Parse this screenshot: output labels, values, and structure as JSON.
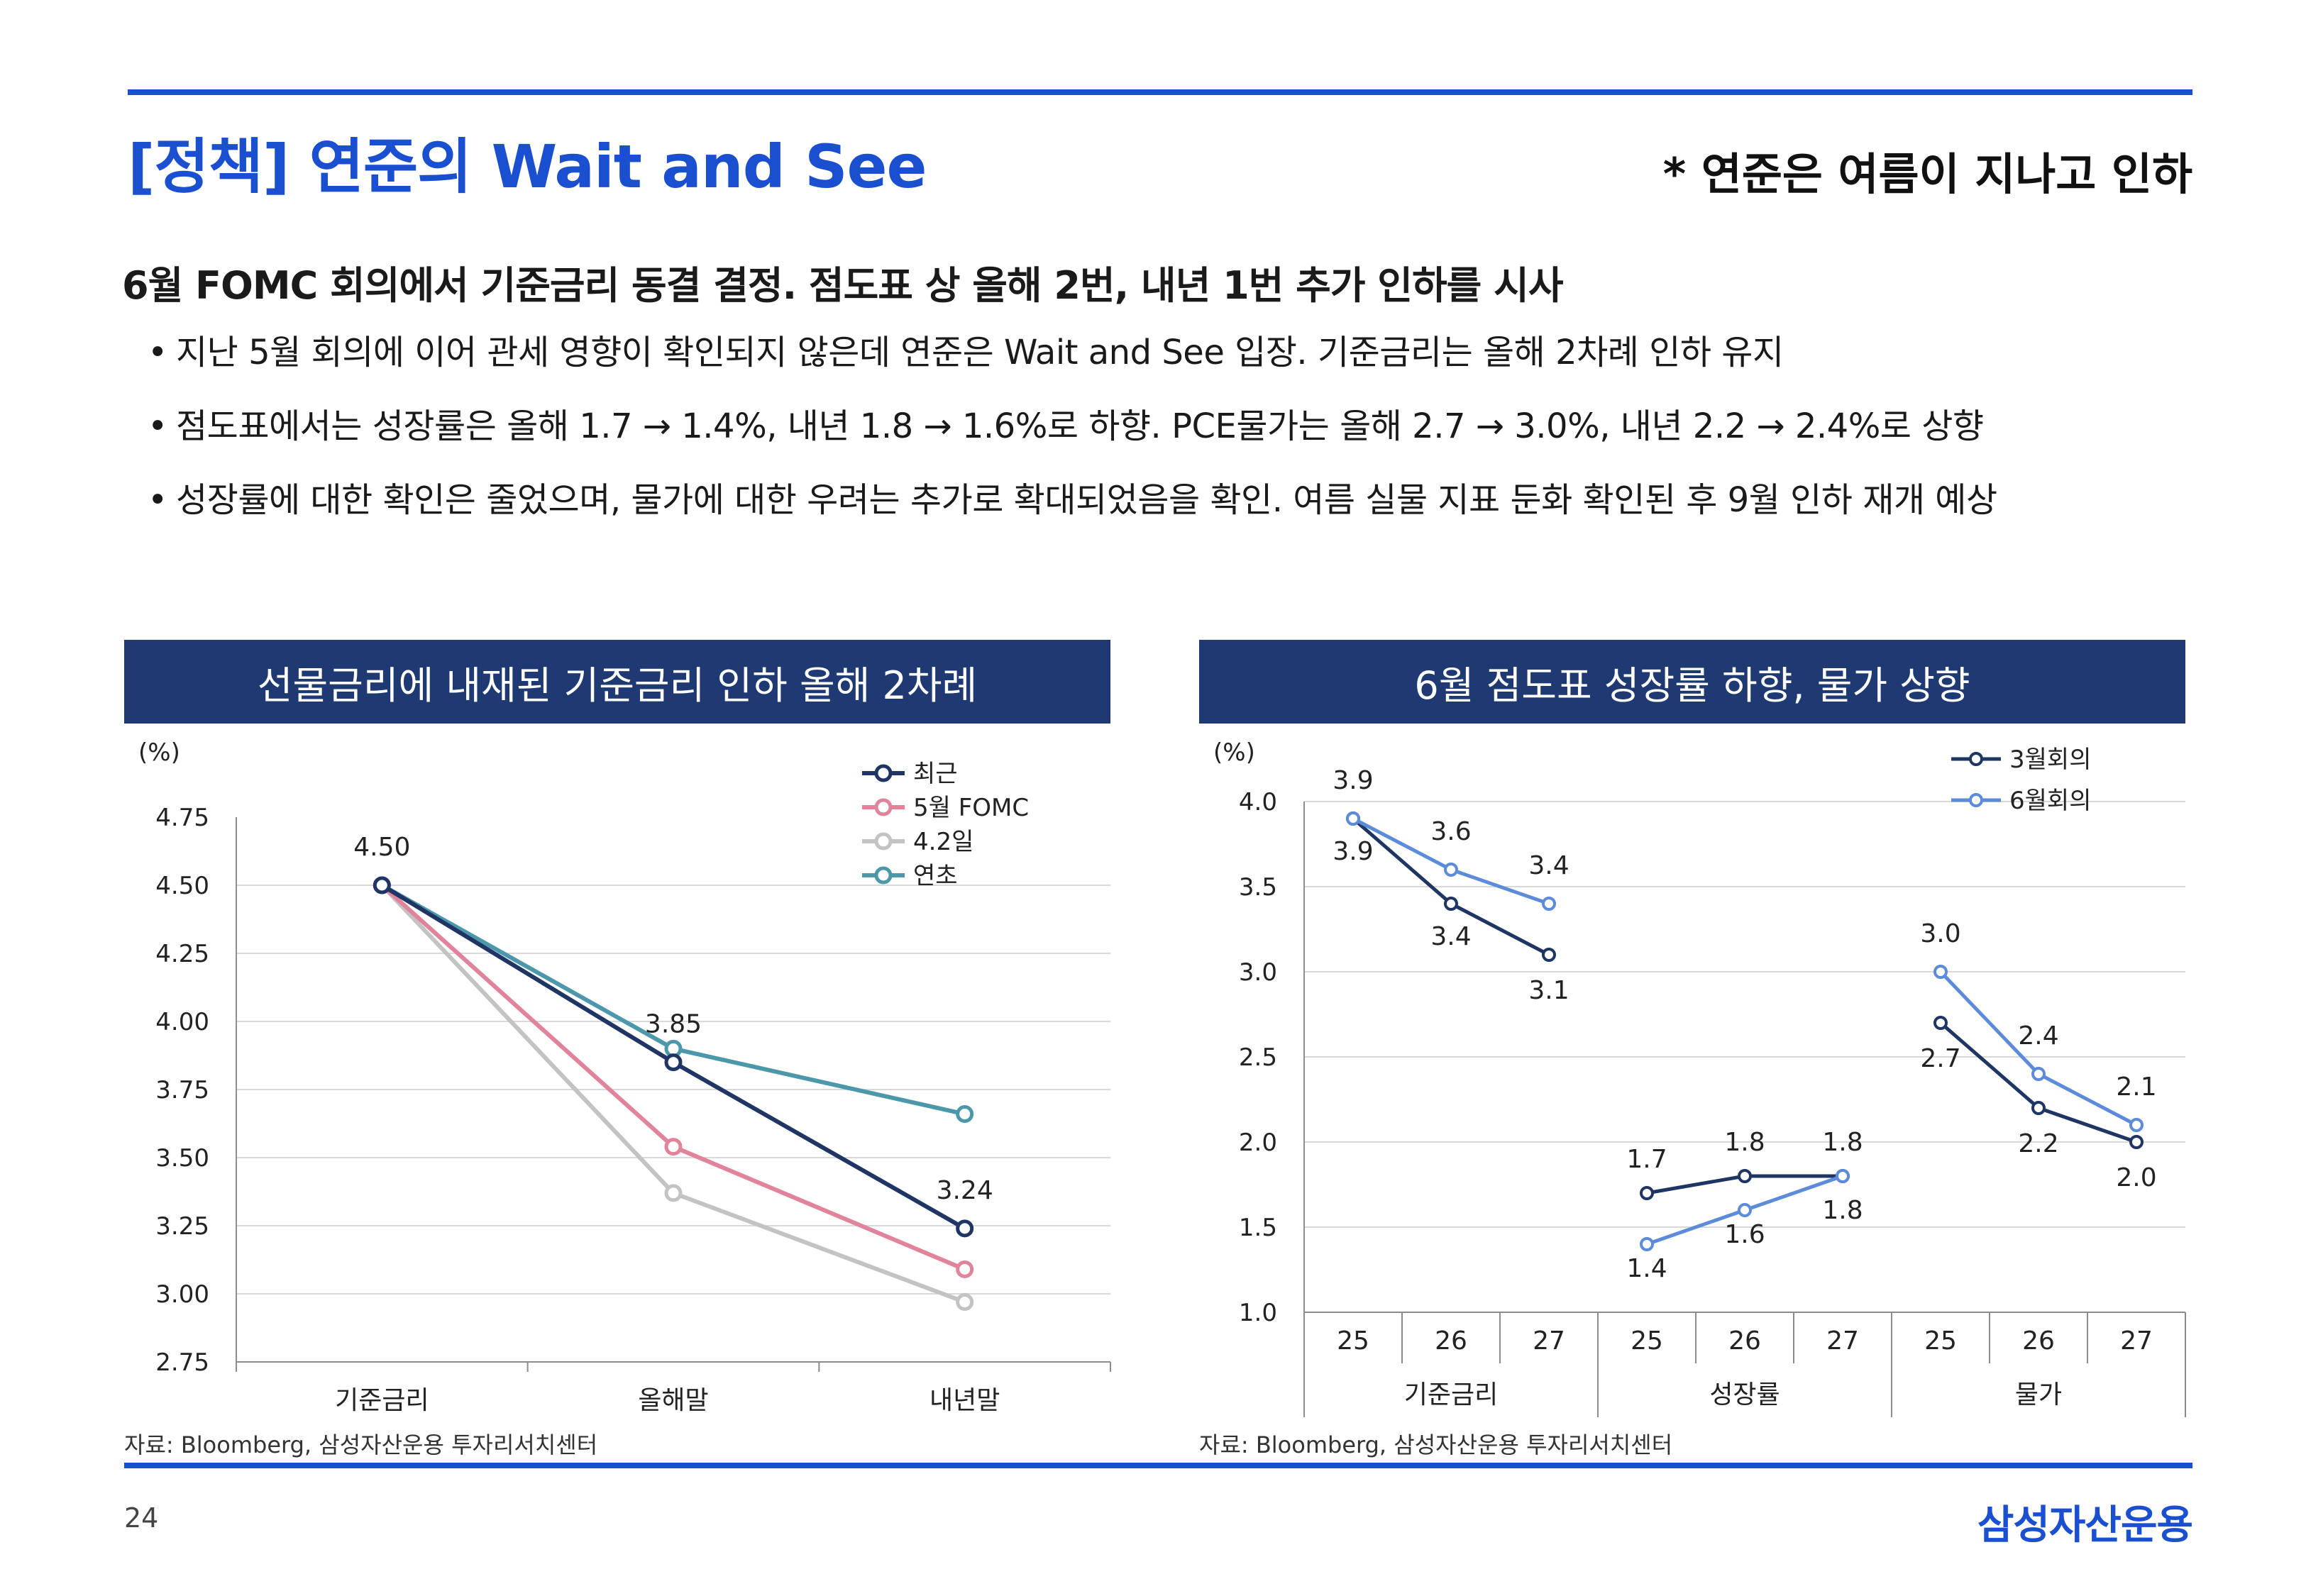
{
  "header": {
    "title": "[정책] 연준의 Wait and See",
    "note": "* 연준은 여름이 지나고 인하"
  },
  "lead": "6월 FOMC 회의에서 기준금리 동결 결정. 점도표 상 올해 2번, 내년 1번 추가 인하를 시사",
  "bullets": [
    "지난 5월 회의에 이어 관세 영향이 확인되지 않은데 연준은 Wait and See 입장. 기준금리는 올해 2차례 인하 유지",
    "점도표에서는 성장률은 올해 1.7 → 1.4%, 내년 1.8 → 1.6%로 하향. PCE물가는 올해 2.7 → 3.0%, 내년 2.2 → 2.4%로 상향",
    "성장률에 대한 확인은 줄었으며, 물가에 대한 우려는 추가로 확대되었음을 확인. 여름 실물 지표 둔화 확인된 후 9월 인하 재개 예상"
  ],
  "bullet_symbol": "•",
  "footer": {
    "page": "24",
    "brand": "삼성자산운용"
  },
  "chart_data": [
    {
      "type": "line",
      "title": "선물금리에 내재된 기준금리 인하 올해 2차례",
      "ylabel": "(%)",
      "ylim": [
        2.75,
        4.75
      ],
      "yticks": [
        "4.75",
        "4.50",
        "4.25",
        "4.00",
        "3.75",
        "3.50",
        "3.25",
        "3.00",
        "2.75"
      ],
      "categories": [
        "기준금리",
        "올해말",
        "내년말"
      ],
      "grid": true,
      "legend": "top-right",
      "series": [
        {
          "name": "최근",
          "values": [
            4.5,
            3.85,
            3.24
          ],
          "color": "#1f3564"
        },
        {
          "name": "5월 FOMC",
          "values": [
            4.5,
            3.54,
            3.09
          ],
          "color": "#e0839b"
        },
        {
          "name": "4.2일",
          "values": [
            4.5,
            3.37,
            2.97
          ],
          "color": "#c3c3c3"
        },
        {
          "name": "연초",
          "values": [
            4.5,
            3.9,
            3.66
          ],
          "color": "#4c98aa"
        }
      ],
      "data_labels": [
        {
          "text": "4.50",
          "category": 0,
          "value": 4.5
        },
        {
          "text": "3.85",
          "category": 1,
          "value": 3.85
        },
        {
          "text": "3.24",
          "category": 2,
          "value": 3.24
        }
      ],
      "source": "자료: Bloomberg, 삼성자산운용 투자리서치센터"
    },
    {
      "type": "line",
      "title": "6월 점도표 성장률 하향, 물가 상향",
      "ylabel": "(%)",
      "ylim": [
        1.0,
        4.0
      ],
      "yticks": [
        "4.0",
        "3.5",
        "3.0",
        "2.5",
        "2.0",
        "1.5",
        "1.0"
      ],
      "groups": [
        {
          "name": "기준금리",
          "x": [
            "25",
            "26",
            "27"
          ]
        },
        {
          "name": "성장률",
          "x": [
            "25",
            "26",
            "27"
          ]
        },
        {
          "name": "물가",
          "x": [
            "25",
            "26",
            "27"
          ]
        }
      ],
      "grid": true,
      "legend": "top-right",
      "series": [
        {
          "name": "3월회의",
          "color": "#1f3564",
          "values": [
            [
              3.9,
              3.4,
              3.1
            ],
            [
              1.7,
              1.8,
              1.8
            ],
            [
              2.7,
              2.2,
              2.0
            ]
          ],
          "labels": [
            [
              "3.9",
              "3.4",
              "3.1"
            ],
            [
              "1.7",
              "1.8",
              "1.8"
            ],
            [
              "2.7",
              "2.2",
              "2.0"
            ]
          ]
        },
        {
          "name": "6월회의",
          "color": "#5b8bd9",
          "values": [
            [
              3.9,
              3.6,
              3.4
            ],
            [
              1.4,
              1.6,
              1.8
            ],
            [
              3.0,
              2.4,
              2.1
            ]
          ],
          "labels": [
            [
              "3.9",
              "3.6",
              "3.4"
            ],
            [
              "1.4",
              "1.6",
              "1.8"
            ],
            [
              "3.0",
              "2.4",
              "2.1"
            ]
          ]
        }
      ],
      "source": "자료: Bloomberg, 삼성자산운용 투자리서치센터"
    }
  ]
}
